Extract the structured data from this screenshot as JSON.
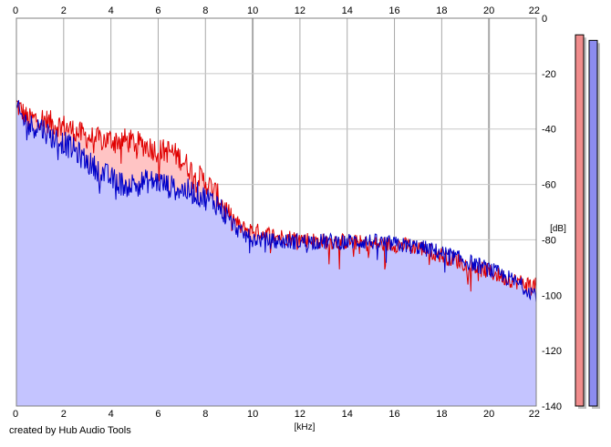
{
  "chart_data": {
    "type": "area",
    "x_unit_label": "[kHz]",
    "y_unit_label": "[dB]",
    "xlim": [
      0,
      22
    ],
    "ylim": [
      -140,
      0
    ],
    "x_ticks": [
      "0",
      "2",
      "4",
      "6",
      "8",
      "10",
      "12",
      "14",
      "16",
      "18",
      "20",
      "22"
    ],
    "y_ticks": [
      "0",
      "-20",
      "-40",
      "-60",
      "-80",
      "-100",
      "-120",
      "-140"
    ],
    "grid": true,
    "colors": {
      "left_line": "#e00000",
      "left_fill": "#ffc4c4",
      "right_line": "#0000c8",
      "right_fill": "#c4c4ff"
    },
    "series": [
      {
        "channel": "left",
        "x": [
          0,
          0.5,
          1,
          1.5,
          2,
          2.5,
          3,
          3.5,
          4,
          4.5,
          5,
          5.5,
          6,
          6.5,
          7,
          7.5,
          8,
          8.5,
          9,
          9.5,
          10,
          11,
          12,
          13,
          14,
          15,
          16,
          17,
          18,
          19,
          20,
          21,
          22
        ],
        "y": [
          -30,
          -36,
          -35,
          -37,
          -38,
          -40,
          -42,
          -43,
          -43,
          -43,
          -44,
          -45,
          -47,
          -47,
          -50,
          -55,
          -58,
          -63,
          -70,
          -75,
          -76,
          -78,
          -79,
          -80,
          -80,
          -81,
          -81,
          -82,
          -85,
          -88,
          -91,
          -94,
          -96
        ]
      },
      {
        "channel": "right",
        "x": [
          0,
          0.5,
          1,
          1.5,
          2,
          2.5,
          3,
          3.5,
          4,
          4.5,
          5,
          5.5,
          6,
          6.5,
          7,
          7.5,
          8,
          8.5,
          9,
          9.5,
          10,
          11,
          12,
          13,
          14,
          15,
          16,
          17,
          18,
          19,
          20,
          21,
          22
        ],
        "y": [
          -32,
          -38,
          -38,
          -42,
          -44,
          -47,
          -51,
          -54,
          -57,
          -59,
          -59,
          -58,
          -58,
          -60,
          -61,
          -62,
          -64,
          -66,
          -72,
          -77,
          -79,
          -80,
          -80,
          -80,
          -80,
          -80,
          -81,
          -82,
          -84,
          -87,
          -90,
          -94,
          -99
        ]
      }
    ],
    "level_bars": [
      {
        "channel": "left",
        "level_db": -6
      },
      {
        "channel": "right",
        "level_db": -8
      }
    ]
  },
  "footer": {
    "credit": "created by Hub Audio Tools"
  }
}
